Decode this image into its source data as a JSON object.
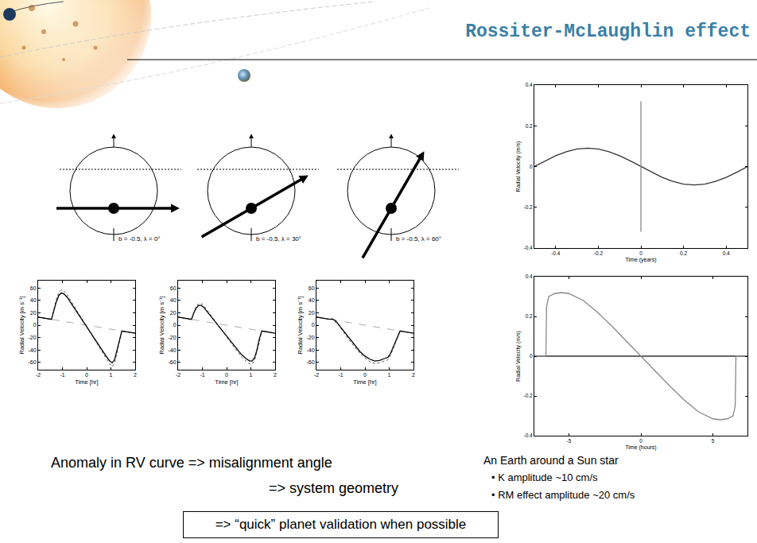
{
  "slide": {
    "title": "Rossiter-McLaughlin effect",
    "left_text": [
      "Anomaly in RV curve => misalignment angle",
      "=> system geometry"
    ],
    "right_text": [
      "An Earth around a Sun star",
      "• K amplitude ~10 cm/s",
      "• RM effect amplitude ~20 cm/s"
    ],
    "box_text": "=> “quick” planet validation when possible"
  },
  "diagrams": [
    {
      "label": "b = -0.5, λ = 0°",
      "b": -0.5,
      "lambda": 0
    },
    {
      "label": "b = -0.5, λ = 30°",
      "b": -0.5,
      "lambda": 30
    },
    {
      "label": "b = -0.5, λ = 60°",
      "b": -0.5,
      "lambda": 60
    }
  ],
  "chart_data": [
    {
      "type": "line",
      "x_label": "Time [hr]",
      "y_label": "Radial Velocity [m s⁻¹]",
      "xlim": [
        -2,
        2
      ],
      "xticks": [
        -2,
        -1,
        0,
        1,
        2
      ],
      "ylim": [
        -72,
        72
      ],
      "yticks": [
        -60,
        -40,
        -20,
        0,
        20,
        40,
        60
      ],
      "grid": false,
      "series": [
        {
          "color": "#aaaaaa",
          "line_style": "dashed",
          "x": [
            -2,
            2
          ],
          "values": [
            13,
            -13
          ]
        },
        {
          "color": "#555555",
          "line_style": "dotted",
          "x": [
            -2,
            -1.6,
            -1.45,
            -1.35,
            -1.25,
            -1.15,
            -1.05,
            -0.95,
            -0.8,
            -0.6,
            -0.4,
            -0.2,
            0,
            0.2,
            0.4,
            0.6,
            0.8,
            0.95,
            1.05,
            1.15,
            1.25,
            1.35,
            1.45,
            1.6,
            2
          ],
          "values": [
            13,
            10.4,
            9.4,
            26,
            42,
            53,
            57,
            56,
            49,
            36,
            23,
            10,
            -2,
            -15,
            -28,
            -41,
            -54,
            -63,
            -67,
            -62,
            -45,
            -26,
            -9.4,
            -10.4,
            -13
          ]
        },
        {
          "color": "#000000",
          "line_style": "solid",
          "x": [
            -2,
            -1.6,
            -1.45,
            -1.35,
            -1.25,
            -1.15,
            -1.05,
            -0.95,
            -0.8,
            -0.6,
            -0.4,
            -0.2,
            0,
            0.2,
            0.4,
            0.6,
            0.8,
            0.95,
            1.05,
            1.15,
            1.25,
            1.35,
            1.45,
            1.6,
            2
          ],
          "values": [
            13,
            10.4,
            9.4,
            24,
            38,
            48,
            52,
            51,
            45,
            33,
            21,
            9,
            -2,
            -14,
            -26,
            -38,
            -50,
            -58,
            -61,
            -56,
            -41,
            -24,
            -9.4,
            -10.4,
            -13
          ]
        }
      ]
    },
    {
      "type": "line",
      "x_label": "Time [hr]",
      "y_label": "Radial Velocity [m s⁻¹]",
      "xlim": [
        -2,
        2
      ],
      "xticks": [
        -2,
        -1,
        0,
        1,
        2
      ],
      "ylim": [
        -72,
        72
      ],
      "yticks": [
        -60,
        -40,
        -20,
        0,
        20,
        40,
        60
      ],
      "grid": false,
      "series": [
        {
          "color": "#aaaaaa",
          "line_style": "dashed",
          "x": [
            -2,
            2
          ],
          "values": [
            13,
            -13
          ]
        },
        {
          "color": "#555555",
          "line_style": "dotted",
          "x": [
            -2,
            -1.6,
            -1.45,
            -1.35,
            -1.25,
            -1.15,
            -1.05,
            -0.95,
            -0.8,
            -0.6,
            -0.4,
            -0.2,
            0,
            0.2,
            0.4,
            0.6,
            0.8,
            0.95,
            1.05,
            1.15,
            1.25,
            1.35,
            1.45,
            1.6,
            2
          ],
          "values": [
            13,
            10.4,
            9.4,
            21,
            30,
            35,
            35,
            32,
            24,
            13,
            2,
            -9,
            -20,
            -30,
            -41,
            -51,
            -58,
            -63,
            -63,
            -57,
            -43,
            -24,
            -9.4,
            -10.4,
            -13
          ]
        },
        {
          "color": "#000000",
          "line_style": "solid",
          "x": [
            -2,
            -1.6,
            -1.45,
            -1.35,
            -1.25,
            -1.15,
            -1.05,
            -0.95,
            -0.8,
            -0.6,
            -0.4,
            -0.2,
            0,
            0.2,
            0.4,
            0.6,
            0.8,
            0.95,
            1.05,
            1.15,
            1.25,
            1.35,
            1.45,
            1.6,
            2
          ],
          "values": [
            13,
            10.4,
            9.4,
            20,
            28,
            32,
            32,
            29,
            22,
            12,
            2,
            -8,
            -18,
            -28,
            -38,
            -47,
            -54,
            -58,
            -58,
            -53,
            -40,
            -22,
            -9.4,
            -10.4,
            -13
          ]
        }
      ]
    },
    {
      "type": "line",
      "x_label": "Time [hr]",
      "y_label": "Radial Velocity [m s⁻¹]",
      "xlim": [
        -2,
        2
      ],
      "xticks": [
        -2,
        -1,
        0,
        1,
        2
      ],
      "ylim": [
        -72,
        72
      ],
      "yticks": [
        -60,
        -40,
        -20,
        0,
        20,
        40,
        60
      ],
      "grid": false,
      "series": [
        {
          "color": "#aaaaaa",
          "line_style": "dashed",
          "x": [
            -2,
            2
          ],
          "values": [
            13,
            -13
          ]
        },
        {
          "color": "#555555",
          "line_style": "dotted",
          "x": [
            -2,
            -1.6,
            -1.45,
            -1.35,
            -1.25,
            -1.15,
            -1.05,
            -0.95,
            -0.8,
            -0.6,
            -0.4,
            -0.2,
            0,
            0.2,
            0.4,
            0.6,
            0.8,
            0.95,
            1.05,
            1.15,
            1.25,
            1.35,
            1.45,
            1.6,
            2
          ],
          "values": [
            13,
            10.4,
            9.4,
            10,
            7,
            3,
            -2,
            -8,
            -16,
            -27,
            -37,
            -46,
            -53,
            -59,
            -62,
            -61,
            -58,
            -56,
            -49,
            -40,
            -29,
            -18,
            -9.4,
            -10.4,
            -13
          ]
        },
        {
          "color": "#000000",
          "line_style": "solid",
          "x": [
            -2,
            -1.6,
            -1.45,
            -1.35,
            -1.25,
            -1.15,
            -1.05,
            -0.95,
            -0.8,
            -0.6,
            -0.4,
            -0.2,
            0,
            0.2,
            0.4,
            0.6,
            0.8,
            0.95,
            1.05,
            1.15,
            1.25,
            1.35,
            1.45,
            1.6,
            2
          ],
          "values": [
            13,
            10.4,
            9.4,
            10,
            8,
            4,
            -1,
            -6,
            -14,
            -24,
            -34,
            -43,
            -50,
            -55,
            -58,
            -57,
            -54,
            -52,
            -46,
            -37,
            -27,
            -17,
            -9.4,
            -10.4,
            -13
          ]
        }
      ]
    },
    {
      "type": "line",
      "x_label": "Time (years)",
      "y_label": "Radial Velocity (m/s)",
      "xlim": [
        -0.5,
        0.5
      ],
      "xticks": [
        -0.4,
        -0.2,
        0,
        0.2,
        0.4
      ],
      "ylim": [
        -0.4,
        0.4
      ],
      "yticks": [
        -0.4,
        -0.2,
        0,
        0.2,
        0.4
      ],
      "grid": false,
      "series": [
        {
          "color": "#333333",
          "line_style": "solid",
          "x": [
            -0.5,
            -0.45,
            -0.4,
            -0.35,
            -0.3,
            -0.25,
            -0.2,
            -0.15,
            -0.1,
            -0.05,
            0,
            0.05,
            0.1,
            0.15,
            0.2,
            0.25,
            0.3,
            0.35,
            0.4,
            0.45,
            0.5
          ],
          "values": [
            0,
            0.028,
            0.053,
            0.073,
            0.086,
            0.09,
            0.086,
            0.073,
            0.053,
            0.028,
            0,
            -0.028,
            -0.053,
            -0.073,
            -0.086,
            -0.09,
            -0.086,
            -0.073,
            -0.053,
            -0.028,
            0
          ]
        },
        {
          "color": "#888888",
          "line_style": "solid",
          "x": [
            0,
            0
          ],
          "values": [
            0.32,
            -0.32
          ]
        }
      ]
    },
    {
      "type": "line",
      "x_label": "Time (hours)",
      "y_label": "Radial Velocity (m/s)",
      "xlim": [
        -7.4,
        7.4
      ],
      "xticks": [
        -5,
        0,
        5
      ],
      "ylim": [
        -0.4,
        0.4
      ],
      "yticks": [
        -0.4,
        -0.2,
        0,
        0.2,
        0.4
      ],
      "grid": false,
      "series": [
        {
          "color": "#333333",
          "line_style": "solid",
          "x": [
            -7.4,
            7.4
          ],
          "values": [
            0,
            0
          ]
        },
        {
          "color": "#888888",
          "line_style": "solid",
          "x": [
            -7.4,
            -6.6,
            -6.55,
            -6.4,
            -6,
            -5.5,
            -5,
            -4,
            -3,
            -2,
            -1,
            0,
            1,
            2,
            3,
            4,
            5,
            5.5,
            6,
            6.4,
            6.55,
            6.6,
            7.4
          ],
          "values": [
            0,
            0,
            0.25,
            0.3,
            0.315,
            0.32,
            0.315,
            0.28,
            0.22,
            0.15,
            0.075,
            0,
            -0.075,
            -0.15,
            -0.22,
            -0.28,
            -0.315,
            -0.32,
            -0.315,
            -0.3,
            -0.25,
            0,
            0
          ]
        }
      ]
    }
  ]
}
